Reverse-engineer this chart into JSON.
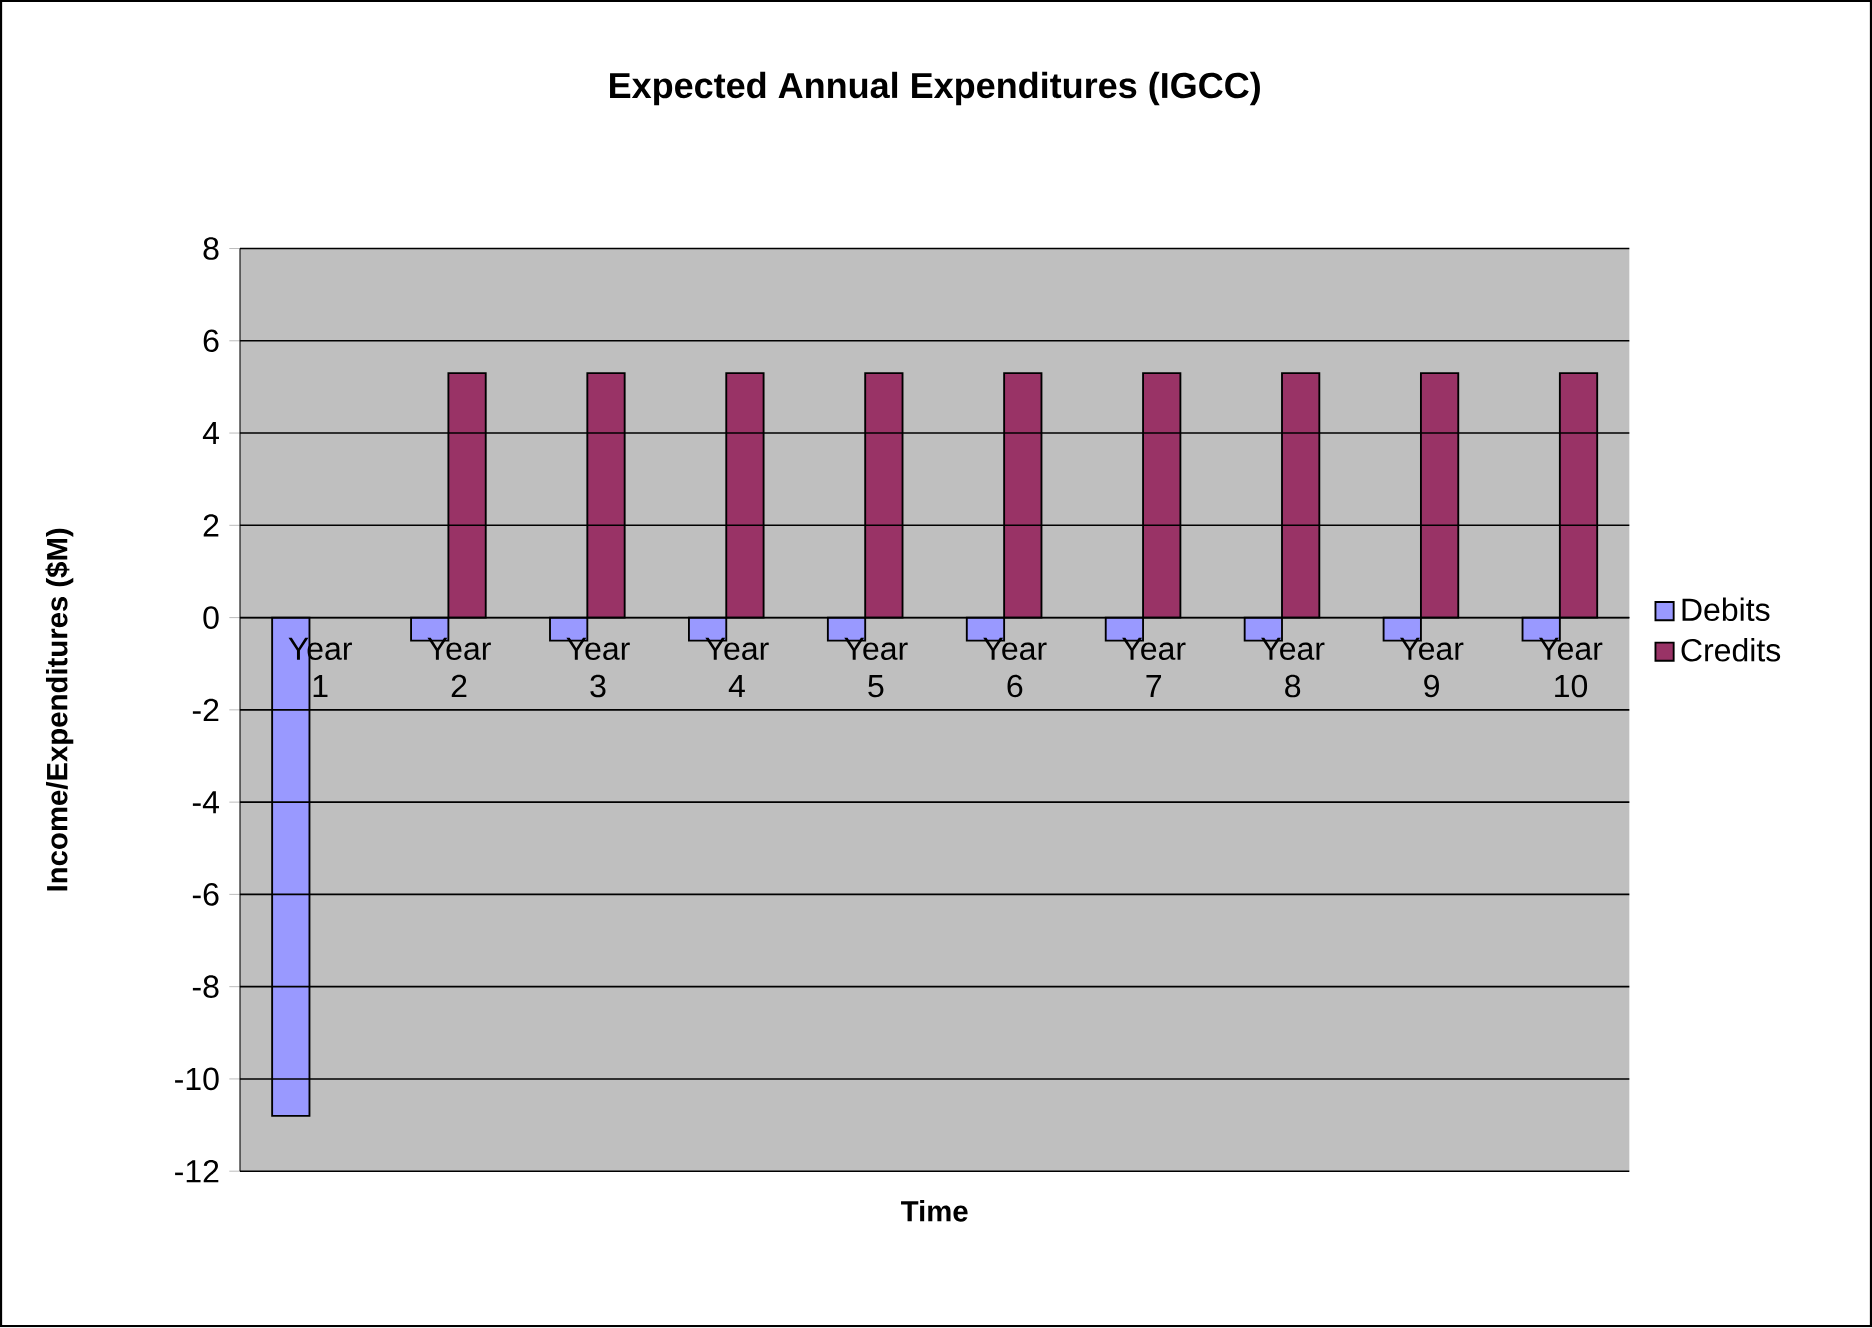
{
  "chart_data": {
    "type": "bar",
    "title": "Expected Annual Expenditures (IGCC)",
    "xlabel": "Time",
    "ylabel": "Income/Expenditures ($M)",
    "categories": [
      "Year 1",
      "Year 2",
      "Year 3",
      "Year 4",
      "Year 5",
      "Year 6",
      "Year 7",
      "Year 8",
      "Year 9",
      "Year 10"
    ],
    "series": [
      {
        "name": "Debits",
        "color": "#9999ff",
        "values": [
          -10.8,
          -0.5,
          -0.5,
          -0.5,
          -0.5,
          -0.5,
          -0.5,
          -0.5,
          -0.5,
          -0.5
        ]
      },
      {
        "name": "Credits",
        "color": "#993366",
        "values": [
          null,
          5.3,
          5.3,
          5.3,
          5.3,
          5.3,
          5.3,
          5.3,
          5.3,
          5.3
        ]
      }
    ],
    "ylim": [
      -12,
      8
    ],
    "yticks": [
      -12,
      -10,
      -8,
      -6,
      -4,
      -2,
      0,
      2,
      4,
      6,
      8
    ],
    "grid": "y",
    "legend": "right"
  }
}
